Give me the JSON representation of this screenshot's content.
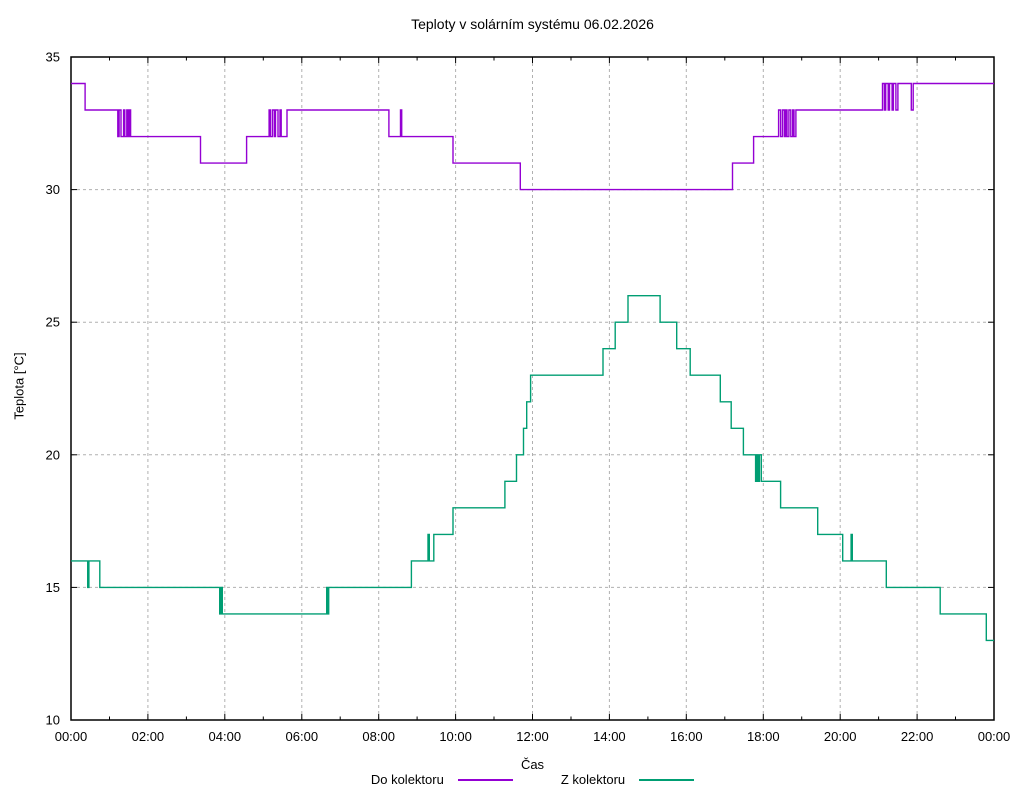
{
  "title": "Teploty v solárním systému 06.02.2026",
  "axes": {
    "x": {
      "label": "Čas",
      "tick_labels": [
        "00:00",
        "02:00",
        "04:00",
        "06:00",
        "08:00",
        "10:00",
        "12:00",
        "14:00",
        "16:00",
        "18:00",
        "20:00",
        "22:00",
        "00:00"
      ]
    },
    "y": {
      "label": "Teplota [°C]",
      "tick_labels": [
        "10",
        "15",
        "20",
        "25",
        "30",
        "35"
      ]
    }
  },
  "legend": {
    "items": [
      {
        "label": "Do kolektoru",
        "color": "#9400D3"
      },
      {
        "label": "Z kolektoru",
        "color": "#009E73"
      }
    ]
  },
  "colors": {
    "background": "#ffffff",
    "axis": "#000000",
    "grid": "#b0b0b0",
    "series_do_kolektoru": "#9400D3",
    "series_z_kolektoru": "#009E73"
  },
  "chart_data": {
    "type": "line",
    "title": "Teploty v solárním systému 06.02.2026",
    "xlabel": "Čas",
    "ylabel": "Teplota [°C]",
    "x_unit": "minutes since 00:00",
    "xlim": [
      0,
      1440
    ],
    "ylim": [
      10,
      35
    ],
    "x_major_tick_min": 120,
    "x_minor_tick_min": 60,
    "y_major_tick": 5,
    "grid": true,
    "legend_position": "bottom-center",
    "line_mode": "step-after",
    "series": [
      {
        "name": "Do kolektoru",
        "color": "#9400D3",
        "points": [
          [
            0,
            34
          ],
          [
            22,
            33
          ],
          [
            73,
            32
          ],
          [
            75,
            33
          ],
          [
            78,
            32
          ],
          [
            82,
            33
          ],
          [
            84,
            32
          ],
          [
            87,
            33
          ],
          [
            89,
            32
          ],
          [
            91,
            33
          ],
          [
            93,
            32
          ],
          [
            202,
            31
          ],
          [
            274,
            32
          ],
          [
            309,
            33
          ],
          [
            311,
            32
          ],
          [
            314,
            33
          ],
          [
            317,
            32
          ],
          [
            319,
            33
          ],
          [
            323,
            32
          ],
          [
            326,
            33
          ],
          [
            328,
            32
          ],
          [
            337,
            33
          ],
          [
            496,
            32
          ],
          [
            514,
            33
          ],
          [
            516,
            32
          ],
          [
            596,
            31
          ],
          [
            701,
            30
          ],
          [
            1032,
            31
          ],
          [
            1065,
            32
          ],
          [
            1104,
            33
          ],
          [
            1107,
            32
          ],
          [
            1110,
            33
          ],
          [
            1113,
            32
          ],
          [
            1115,
            33
          ],
          [
            1117,
            32
          ],
          [
            1120,
            33
          ],
          [
            1123,
            32
          ],
          [
            1126,
            33
          ],
          [
            1128,
            32
          ],
          [
            1131,
            33
          ],
          [
            1266,
            34
          ],
          [
            1269,
            33
          ],
          [
            1271,
            34
          ],
          [
            1275,
            33
          ],
          [
            1277,
            34
          ],
          [
            1281,
            33
          ],
          [
            1283,
            34
          ],
          [
            1287,
            33
          ],
          [
            1290,
            34
          ],
          [
            1311,
            33
          ],
          [
            1314,
            34
          ],
          [
            1440,
            34
          ]
        ]
      },
      {
        "name": "Z kolektoru",
        "color": "#009E73",
        "points": [
          [
            0,
            16
          ],
          [
            26,
            15
          ],
          [
            28,
            16
          ],
          [
            45,
            15
          ],
          [
            232,
            14
          ],
          [
            234,
            15
          ],
          [
            236,
            14
          ],
          [
            399,
            15
          ],
          [
            400,
            14
          ],
          [
            402,
            15
          ],
          [
            531,
            16
          ],
          [
            557,
            17
          ],
          [
            559,
            16
          ],
          [
            566,
            17
          ],
          [
            596,
            18
          ],
          [
            677,
            19
          ],
          [
            695,
            20
          ],
          [
            706,
            21
          ],
          [
            711,
            22
          ],
          [
            717,
            23
          ],
          [
            830,
            24
          ],
          [
            849,
            25
          ],
          [
            869,
            26
          ],
          [
            919,
            25
          ],
          [
            945,
            24
          ],
          [
            966,
            23
          ],
          [
            1013,
            22
          ],
          [
            1030,
            21
          ],
          [
            1049,
            20
          ],
          [
            1068,
            19
          ],
          [
            1070,
            20
          ],
          [
            1072,
            19
          ],
          [
            1074,
            20
          ],
          [
            1077,
            19
          ],
          [
            1107,
            18
          ],
          [
            1165,
            17
          ],
          [
            1204,
            16
          ],
          [
            1217,
            17
          ],
          [
            1219,
            16
          ],
          [
            1272,
            15
          ],
          [
            1356,
            14
          ],
          [
            1428,
            13
          ],
          [
            1440,
            13
          ]
        ]
      }
    ]
  }
}
